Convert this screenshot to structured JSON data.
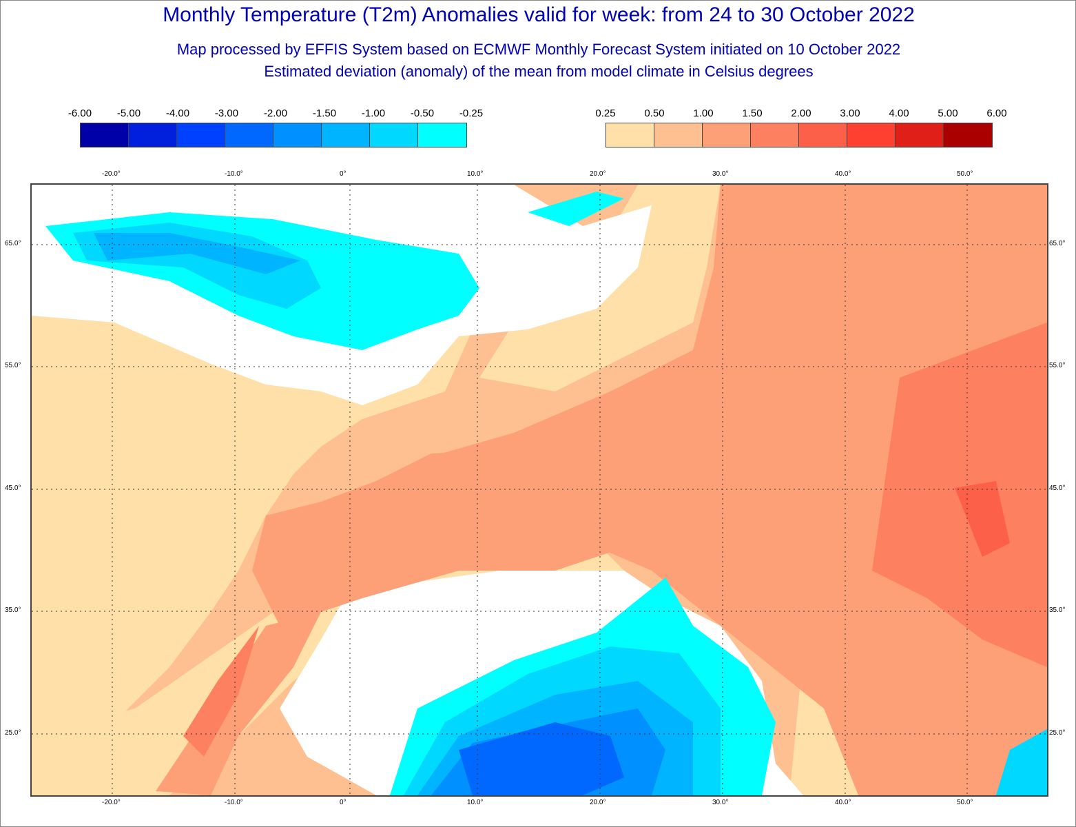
{
  "title": "Monthly Temperature (T2m) Anomalies valid for week: from 24 to 30 October 2022",
  "subtitle1": "Map processed by EFFIS System based on ECMWF Monthly Forecast System initiated on 10 October 2022",
  "subtitle2": "Estimated deviation (anomaly) of the mean from model climate in Celsius degrees",
  "legend_cold": {
    "labels": [
      "-6.00",
      "-5.00",
      "-4.00",
      "-3.00",
      "-2.00",
      "-1.50",
      "-1.00",
      "-0.50",
      "-0.25"
    ],
    "colors": [
      "#0000a8",
      "#0020dd",
      "#0040ff",
      "#0068ff",
      "#0090ff",
      "#00b4ff",
      "#00d8ff",
      "#00ffff"
    ]
  },
  "legend_warm": {
    "labels": [
      "0.25",
      "0.50",
      "1.00",
      "1.50",
      "2.00",
      "3.00",
      "4.00",
      "5.00",
      "6.00"
    ],
    "colors": [
      "#fee0a8",
      "#fec090",
      "#fda078",
      "#fd8060",
      "#fd6048",
      "#fe4030",
      "#e02018",
      "#aa0000"
    ]
  },
  "lon_ticks": [
    "-20.0°",
    "-10.0°",
    "0°",
    "10.0°",
    "20.0°",
    "30.0°",
    "40.0°",
    "50.0°"
  ],
  "lat_ticks": [
    "65.0°",
    "55.0°",
    "45.0°",
    "35.0°",
    "25.0°"
  ]
}
